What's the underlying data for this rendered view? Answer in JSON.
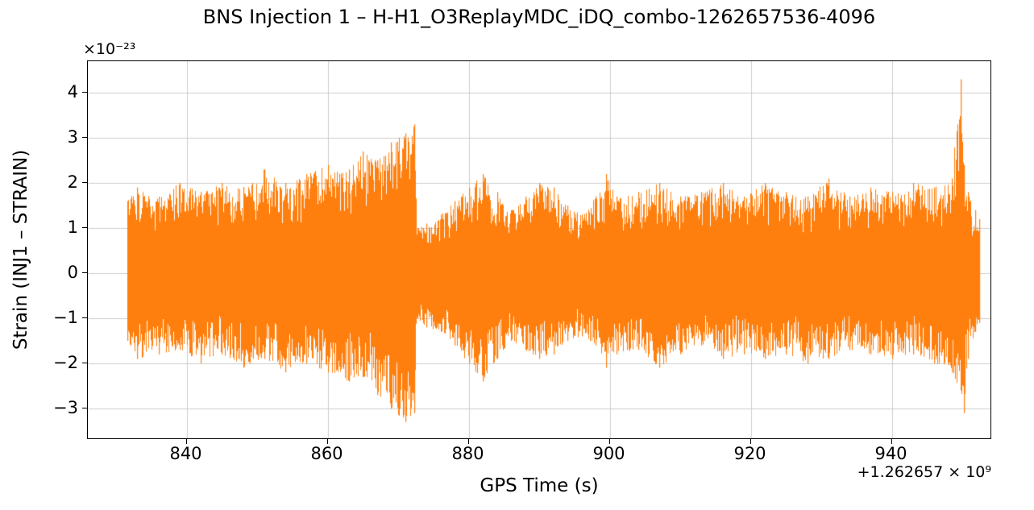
{
  "figure": {
    "title": "BNS Injection 1 – H-H1_O3ReplayMDC_iDQ_combo-1262657536-4096",
    "xlabel": "GPS Time (s)",
    "ylabel": "Strain (INJ1 – STRAIN)",
    "y_offset_text": "×10⁻²³",
    "x_offset_text": "+1.262657 × 10⁹"
  },
  "chart_data": {
    "type": "line",
    "title": "BNS Injection 1 – H-H1_O3ReplayMDC_iDQ_combo-1262657536-4096",
    "xlabel": "GPS Time (s)",
    "ylabel": "Strain (INJ1 – STRAIN)",
    "series_color": "#ff7f0e",
    "grid": true,
    "xlim": [
      826,
      954
    ],
    "ylim": [
      -3.66,
      4.7
    ],
    "xticks": [
      840,
      860,
      880,
      900,
      920,
      940
    ],
    "xtick_labels": [
      "840",
      "860",
      "880",
      "900",
      "920",
      "940"
    ],
    "yticks": [
      -3,
      -2,
      -1,
      0,
      1,
      2,
      3,
      4
    ],
    "ytick_labels": [
      "−3",
      "−2",
      "−1",
      "0",
      "1",
      "2",
      "3",
      "4"
    ],
    "x_scale_note": "x axis values are seconds relative to GPS offset +1.262657e9",
    "y_scale_note": "y axis values are strain in units of 1e-23",
    "data_start": 831.6,
    "data_end": 952.4,
    "envelope_note": "Dense noisy strain time series; [time, upper envelope, lower envelope] in axis units. Amplitude grows to ±3.3 until a sharp drop at ~872.5, then fluctuates near ±1.5–2 with a large +4.3/−3.1 glitch spike near t=950.",
    "envelope": [
      [
        831.6,
        1.6,
        -1.5
      ],
      [
        833,
        1.9,
        -1.9
      ],
      [
        836,
        1.7,
        -1.8
      ],
      [
        839,
        2.0,
        -1.7
      ],
      [
        842,
        1.8,
        -2.0
      ],
      [
        845,
        2.0,
        -1.8
      ],
      [
        848,
        1.9,
        -2.1
      ],
      [
        851,
        2.3,
        -1.9
      ],
      [
        854,
        2.0,
        -2.2
      ],
      [
        857,
        2.2,
        -2.0
      ],
      [
        860,
        2.4,
        -2.2
      ],
      [
        863,
        2.3,
        -2.4
      ],
      [
        865,
        2.7,
        -2.3
      ],
      [
        867,
        2.5,
        -2.7
      ],
      [
        869,
        2.9,
        -3.0
      ],
      [
        871,
        3.1,
        -3.3
      ],
      [
        872.3,
        3.3,
        -3.1
      ],
      [
        872.7,
        1.0,
        -1.0
      ],
      [
        874,
        1.1,
        -1.2
      ],
      [
        876,
        1.3,
        -1.3
      ],
      [
        878,
        1.6,
        -1.6
      ],
      [
        880,
        1.9,
        -2.0
      ],
      [
        882,
        2.2,
        -2.4
      ],
      [
        884,
        1.8,
        -1.9
      ],
      [
        886,
        1.4,
        -1.5
      ],
      [
        888,
        1.7,
        -1.7
      ],
      [
        890,
        2.0,
        -1.9
      ],
      [
        892,
        1.9,
        -1.8
      ],
      [
        894,
        1.5,
        -1.5
      ],
      [
        896,
        1.3,
        -1.4
      ],
      [
        898,
        1.7,
        -1.6
      ],
      [
        899.5,
        2.2,
        -2.1
      ],
      [
        901,
        1.7,
        -1.8
      ],
      [
        904,
        1.8,
        -1.7
      ],
      [
        907,
        2.0,
        -2.1
      ],
      [
        910,
        1.7,
        -1.8
      ],
      [
        913,
        1.8,
        -1.6
      ],
      [
        916,
        2.0,
        -1.9
      ],
      [
        919,
        1.7,
        -1.8
      ],
      [
        922,
        2.0,
        -1.9
      ],
      [
        925,
        1.8,
        -1.8
      ],
      [
        928,
        1.7,
        -2.0
      ],
      [
        931,
        2.1,
        -1.9
      ],
      [
        934,
        1.7,
        -1.7
      ],
      [
        937,
        1.9,
        -1.8
      ],
      [
        940,
        1.8,
        -1.9
      ],
      [
        943,
        2.0,
        -1.8
      ],
      [
        946,
        1.9,
        -2.0
      ],
      [
        948.5,
        2.1,
        -2.2
      ],
      [
        949.8,
        4.3,
        -2.6
      ],
      [
        950.2,
        2.4,
        -3.1
      ],
      [
        950.8,
        1.8,
        -1.9
      ],
      [
        951.8,
        1.4,
        -1.3
      ],
      [
        952.4,
        1.2,
        -1.1
      ]
    ]
  }
}
